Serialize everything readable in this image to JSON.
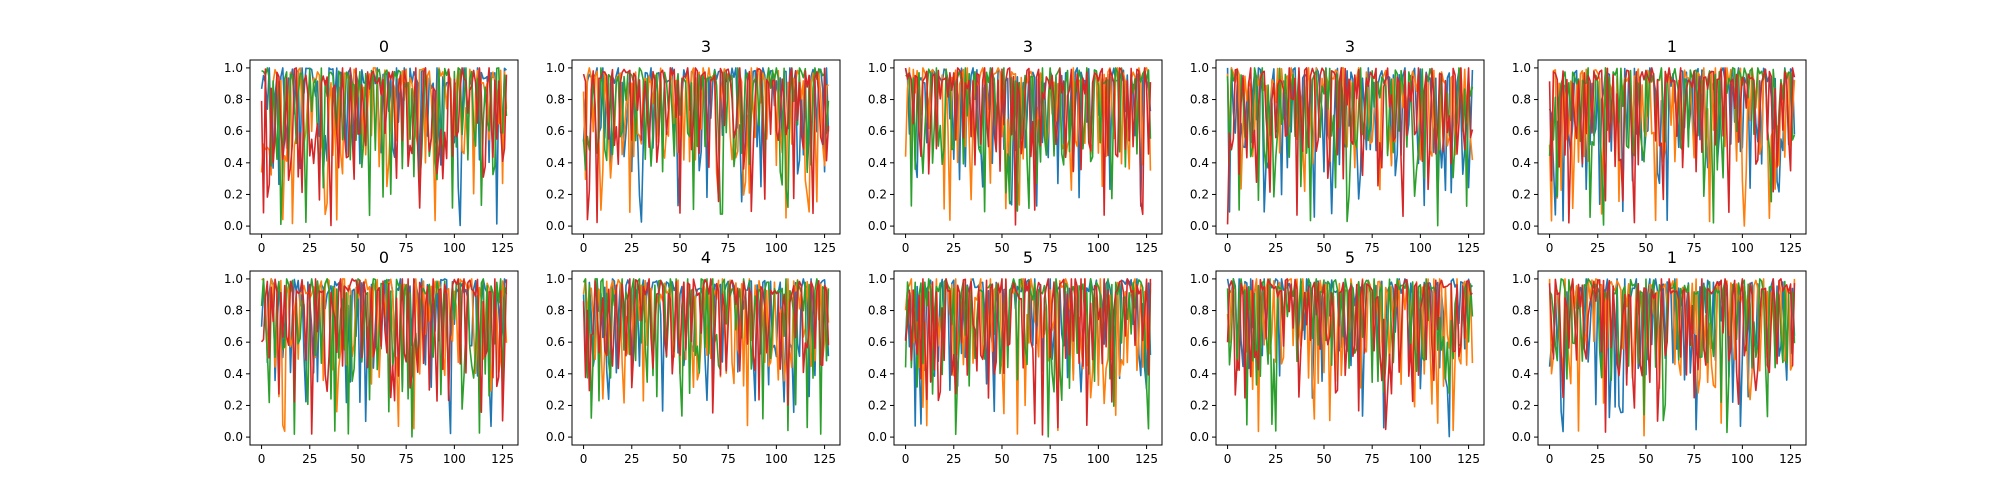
{
  "chart_data": {
    "type": "line",
    "layout": "grid of 2 rows x 5 columns",
    "series_count": 4,
    "series_colors": [
      "#1f77b4",
      "#ff7f0e",
      "#2ca02c",
      "#d62728"
    ],
    "xlim": [
      -6,
      133
    ],
    "ylim": [
      -0.05,
      1.05
    ],
    "x_ticks": [
      0,
      25,
      50,
      75,
      100,
      125
    ],
    "y_ticks": [
      0.0,
      0.2,
      0.4,
      0.6,
      0.8,
      1.0
    ],
    "x_tick_labels": [
      "0",
      "25",
      "50",
      "75",
      "100",
      "125"
    ],
    "y_tick_labels": [
      "0.0",
      "0.2",
      "0.4",
      "0.6",
      "0.8",
      "1.0"
    ],
    "samples_per_series": 128,
    "grid": false,
    "panels": [
      {
        "title": "0"
      },
      {
        "title": "3"
      },
      {
        "title": "3"
      },
      {
        "title": "3"
      },
      {
        "title": "1"
      },
      {
        "title": "0"
      },
      {
        "title": "4"
      },
      {
        "title": "5"
      },
      {
        "title": "5"
      },
      {
        "title": "1"
      }
    ]
  }
}
